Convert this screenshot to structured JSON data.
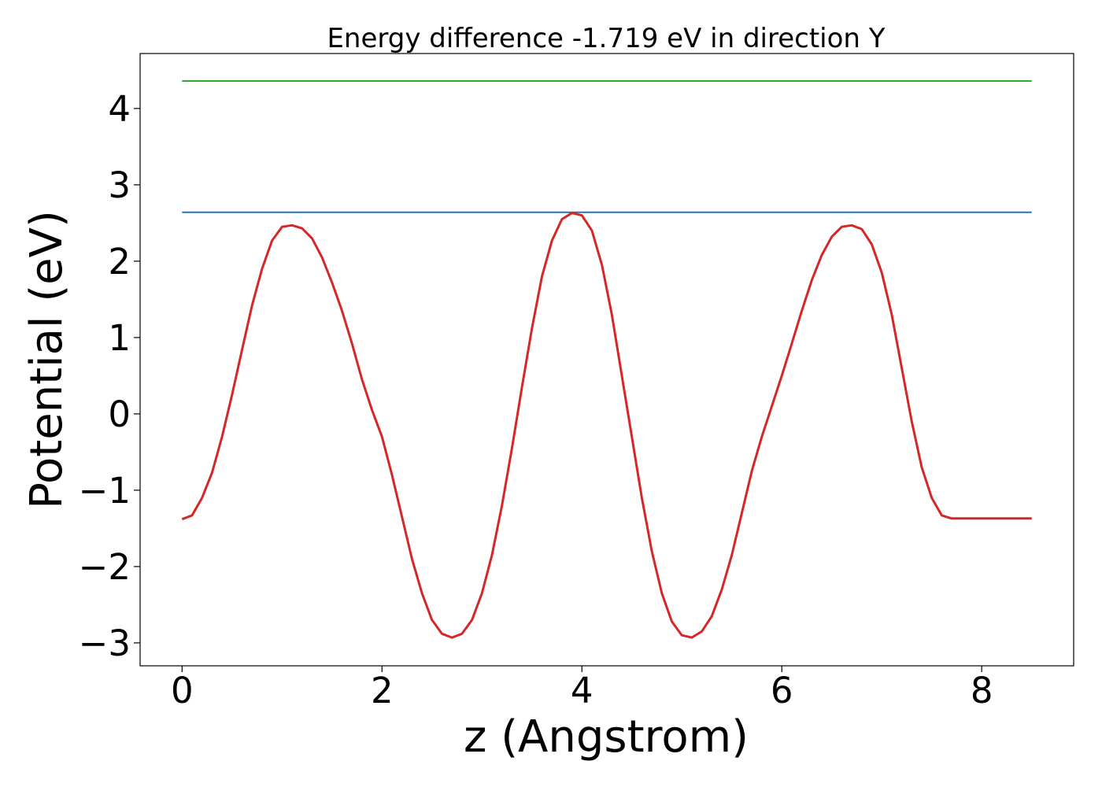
{
  "chart_data": {
    "type": "line",
    "title": "Energy difference -1.719 eV in direction Y",
    "xlabel": "z (Angstrom)",
    "ylabel": "Potential (eV)",
    "xlim": [
      -0.42,
      8.92
    ],
    "ylim": [
      -3.3,
      4.72
    ],
    "xticks": [
      0,
      2,
      4,
      6,
      8
    ],
    "xtick_labels": [
      "0",
      "2",
      "4",
      "6",
      "8"
    ],
    "yticks": [
      -3,
      -2,
      -1,
      0,
      1,
      2,
      3,
      4
    ],
    "ytick_labels": [
      "−3",
      "−2",
      "−1",
      "0",
      "1",
      "2",
      "3",
      "4"
    ],
    "grid": false,
    "series": [
      {
        "color": "#2ca02c",
        "x": [
          0,
          8.5
        ],
        "y": [
          4.36,
          4.36
        ]
      },
      {
        "color": "#1f77b4",
        "x": [
          0,
          8.5
        ],
        "y": [
          2.64,
          2.64
        ]
      },
      {
        "color": "#d62728",
        "x": [
          0.0,
          0.1,
          0.2,
          0.3,
          0.4,
          0.5,
          0.6,
          0.7,
          0.8,
          0.9,
          1.0,
          1.1,
          1.2,
          1.3,
          1.4,
          1.5,
          1.6,
          1.7,
          1.8,
          1.9,
          2.0,
          2.1,
          2.2,
          2.3,
          2.4,
          2.5,
          2.6,
          2.7,
          2.8,
          2.9,
          3.0,
          3.1,
          3.2,
          3.3,
          3.4,
          3.5,
          3.6,
          3.7,
          3.8,
          3.9,
          4.0,
          4.1,
          4.2,
          4.3,
          4.4,
          4.5,
          4.6,
          4.7,
          4.8,
          4.9,
          5.0,
          5.1,
          5.2,
          5.3,
          5.4,
          5.5,
          5.6,
          5.7,
          5.8,
          5.9,
          6.0,
          6.1,
          6.2,
          6.3,
          6.4,
          6.5,
          6.6,
          6.7,
          6.8,
          6.9,
          7.0,
          7.1,
          7.2,
          7.3,
          7.4,
          7.5,
          7.6,
          7.7,
          7.8,
          7.9,
          8.0,
          8.1,
          8.2,
          8.3,
          8.4,
          8.5
        ],
        "y": [
          -1.38,
          -1.33,
          -1.1,
          -0.77,
          -0.3,
          0.25,
          0.84,
          1.42,
          1.9,
          2.27,
          2.45,
          2.47,
          2.43,
          2.3,
          2.05,
          1.72,
          1.35,
          0.92,
          0.45,
          0.05,
          -0.3,
          -0.8,
          -1.35,
          -1.9,
          -2.35,
          -2.7,
          -2.88,
          -2.93,
          -2.88,
          -2.7,
          -2.35,
          -1.85,
          -1.2,
          -0.45,
          0.35,
          1.12,
          1.8,
          2.27,
          2.55,
          2.63,
          2.6,
          2.4,
          1.95,
          1.3,
          0.5,
          -0.3,
          -1.1,
          -1.8,
          -2.35,
          -2.72,
          -2.9,
          -2.93,
          -2.85,
          -2.65,
          -2.3,
          -1.85,
          -1.3,
          -0.75,
          -0.3,
          0.1,
          0.5,
          0.92,
          1.35,
          1.75,
          2.08,
          2.32,
          2.45,
          2.47,
          2.42,
          2.22,
          1.85,
          1.3,
          0.6,
          -0.1,
          -0.7,
          -1.1,
          -1.33,
          -1.37,
          -1.37,
          -1.37,
          -1.37,
          -1.37,
          -1.37,
          -1.37,
          -1.37,
          -1.37
        ]
      }
    ]
  }
}
